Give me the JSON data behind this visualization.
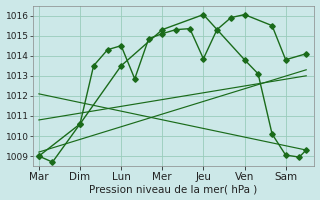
{
  "xlabel": "Pression niveau de la mer( hPa )",
  "ylim": [
    1008.5,
    1016.5
  ],
  "yticks": [
    1009,
    1010,
    1011,
    1012,
    1013,
    1014,
    1015,
    1016
  ],
  "x_labels": [
    "Mar",
    "Dim",
    "Lun",
    "Mer",
    "Jeu",
    "Ven",
    "Sam"
  ],
  "x_positions": [
    0,
    1,
    2,
    3,
    4,
    5,
    6
  ],
  "xlim": [
    -0.15,
    6.7
  ],
  "line1_x": [
    0,
    0.33,
    1.0,
    1.33,
    1.67,
    2.0,
    2.33,
    2.67,
    3.0,
    3.33,
    3.67,
    4.0,
    4.33,
    4.67,
    5.0,
    5.67,
    6.0,
    6.5
  ],
  "line1_y": [
    1009.0,
    1008.7,
    1010.6,
    1013.5,
    1014.3,
    1014.5,
    1012.85,
    1014.85,
    1015.1,
    1015.3,
    1015.35,
    1013.85,
    1015.3,
    1015.9,
    1016.05,
    1015.5,
    1013.8,
    1014.1
  ],
  "line2_x": [
    0,
    1.0,
    2.0,
    3.0,
    4.0,
    5.0,
    5.33,
    5.67,
    6.0,
    6.33,
    6.5
  ],
  "line2_y": [
    1009.0,
    1010.6,
    1013.5,
    1015.3,
    1016.05,
    1013.8,
    1013.1,
    1010.1,
    1009.05,
    1008.95,
    1009.3
  ],
  "trend1_x": [
    0,
    6.5
  ],
  "trend1_y": [
    1009.2,
    1013.3
  ],
  "trend2_x": [
    0,
    6.5
  ],
  "trend2_y": [
    1010.8,
    1013.0
  ],
  "trend3_x": [
    0,
    6.5
  ],
  "trend3_y": [
    1012.1,
    1009.3
  ],
  "background_color": "#cce8e8",
  "grid_color": "#99ccbb",
  "line_color": "#1a6b1a",
  "axis_label_fontsize": 7.5,
  "tick_fontsize": 6.5
}
